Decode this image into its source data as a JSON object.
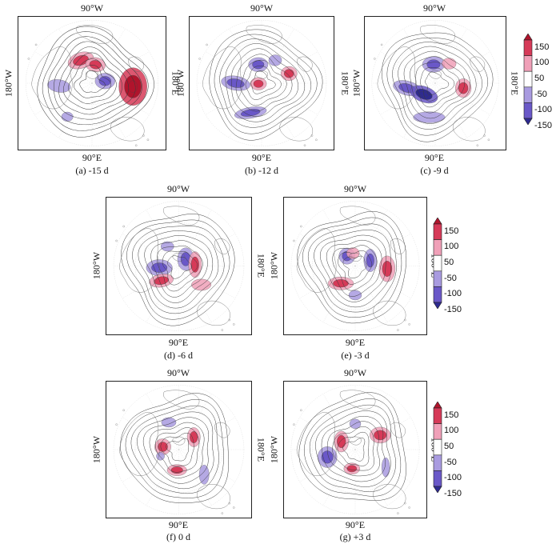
{
  "panel_labels": {
    "top": "90°W",
    "bottom": "90°E",
    "left": "180°W",
    "right": "180°E"
  },
  "panels": [
    {
      "id": "a",
      "caption": "(a) -15 d"
    },
    {
      "id": "b",
      "caption": "(b) -12 d"
    },
    {
      "id": "c",
      "caption": "(c) -9 d"
    },
    {
      "id": "d",
      "caption": "(d) -6 d"
    },
    {
      "id": "e",
      "caption": "(e) -3 d"
    },
    {
      "id": "f",
      "caption": "(f) 0 d"
    },
    {
      "id": "g",
      "caption": "(g) +3 d"
    }
  ],
  "colorbar": {
    "levels": [
      "150",
      "100",
      "50",
      "-50",
      "-100",
      "-150"
    ],
    "colors": [
      "#b0142c",
      "#d63a58",
      "#f0a0b8",
      "#ffffff",
      "#a99be0",
      "#6a58c8",
      "#2e2a90"
    ]
  },
  "anomalies": {
    "a": [
      {
        "sign": 1,
        "amp": 2,
        "ang": -115,
        "r": 0.4,
        "rx": 0.16,
        "ry": 0.1,
        "rot": -20
      },
      {
        "sign": 1,
        "amp": 2,
        "ang": -80,
        "r": 0.3,
        "rx": 0.12,
        "ry": 0.09,
        "rot": 10
      },
      {
        "sign": 1,
        "amp": 3,
        "ang": 5,
        "r": 0.62,
        "rx": 0.17,
        "ry": 0.24,
        "rot": 0
      },
      {
        "sign": -1,
        "amp": 1,
        "ang": 175,
        "r": 0.5,
        "rx": 0.14,
        "ry": 0.08,
        "rot": 10
      },
      {
        "sign": -1,
        "amp": 2,
        "ang": -10,
        "r": 0.2,
        "rx": 0.12,
        "ry": 0.1,
        "rot": 0
      },
      {
        "sign": -1,
        "amp": 1,
        "ang": 125,
        "r": 0.65,
        "rx": 0.07,
        "ry": 0.06,
        "rot": 0
      }
    ],
    "b": [
      {
        "sign": -1,
        "amp": 2,
        "ang": -100,
        "r": 0.3,
        "rx": 0.12,
        "ry": 0.09,
        "rot": 0
      },
      {
        "sign": -1,
        "amp": 2,
        "ang": 180,
        "r": 0.4,
        "rx": 0.18,
        "ry": 0.09,
        "rot": 10
      },
      {
        "sign": -1,
        "amp": 2,
        "ang": 110,
        "r": 0.5,
        "rx": 0.2,
        "ry": 0.07,
        "rot": -10
      },
      {
        "sign": 1,
        "amp": 2,
        "ang": 170,
        "r": 0.05,
        "rx": 0.1,
        "ry": 0.08,
        "rot": 0
      },
      {
        "sign": 1,
        "amp": 2,
        "ang": -20,
        "r": 0.45,
        "rx": 0.1,
        "ry": 0.09,
        "rot": 0
      },
      {
        "sign": -1,
        "amp": 1,
        "ang": -60,
        "r": 0.42,
        "rx": 0.08,
        "ry": 0.07,
        "rot": 0
      }
    ],
    "c": [
      {
        "sign": -1,
        "amp": 2,
        "ang": -95,
        "r": 0.3,
        "rx": 0.14,
        "ry": 0.1,
        "rot": 0
      },
      {
        "sign": -1,
        "amp": 2,
        "ang": 170,
        "r": 0.45,
        "rx": 0.18,
        "ry": 0.09,
        "rot": 15
      },
      {
        "sign": -1,
        "amp": 3,
        "ang": 135,
        "r": 0.25,
        "rx": 0.18,
        "ry": 0.1,
        "rot": 20
      },
      {
        "sign": 1,
        "amp": 2,
        "ang": 10,
        "r": 0.45,
        "rx": 0.1,
        "ry": 0.12,
        "rot": 0
      },
      {
        "sign": 1,
        "amp": 1,
        "ang": -55,
        "r": 0.38,
        "rx": 0.09,
        "ry": 0.07,
        "rot": 0
      },
      {
        "sign": -1,
        "amp": 1,
        "ang": 100,
        "r": 0.55,
        "rx": 0.2,
        "ry": 0.07,
        "rot": 0
      }
    ],
    "d": [
      {
        "sign": -1,
        "amp": 2,
        "ang": 175,
        "r": 0.3,
        "rx": 0.16,
        "ry": 0.1,
        "rot": 0
      },
      {
        "sign": -1,
        "amp": 2,
        "ang": -45,
        "r": 0.15,
        "rx": 0.1,
        "ry": 0.14,
        "rot": 0
      },
      {
        "sign": 1,
        "amp": 2,
        "ang": -5,
        "r": 0.25,
        "rx": 0.08,
        "ry": 0.16,
        "rot": 0
      },
      {
        "sign": 1,
        "amp": 2,
        "ang": 140,
        "r": 0.35,
        "rx": 0.15,
        "ry": 0.08,
        "rot": -10
      },
      {
        "sign": 1,
        "amp": 1,
        "ang": 40,
        "r": 0.45,
        "rx": 0.12,
        "ry": 0.07,
        "rot": 0
      },
      {
        "sign": -1,
        "amp": 1,
        "ang": -120,
        "r": 0.35,
        "rx": 0.08,
        "ry": 0.06,
        "rot": 0
      }
    ],
    "e": [
      {
        "sign": -1,
        "amp": 2,
        "ang": -130,
        "r": 0.2,
        "rx": 0.1,
        "ry": 0.1,
        "rot": 0
      },
      {
        "sign": -1,
        "amp": 2,
        "ang": -20,
        "r": 0.25,
        "rx": 0.08,
        "ry": 0.14,
        "rot": 0
      },
      {
        "sign": 1,
        "amp": 2,
        "ang": 5,
        "r": 0.5,
        "rx": 0.1,
        "ry": 0.16,
        "rot": 0
      },
      {
        "sign": 1,
        "amp": 2,
        "ang": 130,
        "r": 0.35,
        "rx": 0.16,
        "ry": 0.08,
        "rot": 0
      },
      {
        "sign": -1,
        "amp": 1,
        "ang": 90,
        "r": 0.45,
        "rx": 0.08,
        "ry": 0.06,
        "rot": 0
      },
      {
        "sign": 1,
        "amp": 1,
        "ang": -100,
        "r": 0.2,
        "rx": 0.08,
        "ry": 0.07,
        "rot": 0
      }
    ],
    "f": [
      {
        "sign": 1,
        "amp": 2,
        "ang": -170,
        "r": 0.25,
        "rx": 0.1,
        "ry": 0.1,
        "rot": 0
      },
      {
        "sign": 1,
        "amp": 2,
        "ang": -40,
        "r": 0.3,
        "rx": 0.08,
        "ry": 0.12,
        "rot": 0
      },
      {
        "sign": 1,
        "amp": 2,
        "ang": 95,
        "r": 0.32,
        "rx": 0.12,
        "ry": 0.07,
        "rot": 0
      },
      {
        "sign": -1,
        "amp": 1,
        "ang": -110,
        "r": 0.45,
        "rx": 0.09,
        "ry": 0.06,
        "rot": 0
      },
      {
        "sign": -1,
        "amp": 1,
        "ang": 45,
        "r": 0.55,
        "rx": 0.06,
        "ry": 0.12,
        "rot": 0
      },
      {
        "sign": -1,
        "amp": 1,
        "ang": 160,
        "r": 0.3,
        "rx": 0.05,
        "ry": 0.05,
        "rot": 0
      }
    ],
    "g": [
      {
        "sign": 1,
        "amp": 2,
        "ang": -150,
        "r": 0.25,
        "rx": 0.09,
        "ry": 0.13,
        "rot": 0
      },
      {
        "sign": 1,
        "amp": 2,
        "ang": -30,
        "r": 0.45,
        "rx": 0.13,
        "ry": 0.1,
        "rot": 0
      },
      {
        "sign": 1,
        "amp": 2,
        "ang": 100,
        "r": 0.3,
        "rx": 0.1,
        "ry": 0.07,
        "rot": 0
      },
      {
        "sign": -1,
        "amp": 2,
        "ang": 165,
        "r": 0.45,
        "rx": 0.12,
        "ry": 0.13,
        "rot": 0
      },
      {
        "sign": -1,
        "amp": 1,
        "ang": -90,
        "r": 0.4,
        "rx": 0.07,
        "ry": 0.06,
        "rot": 0
      },
      {
        "sign": -1,
        "amp": 1,
        "ang": 30,
        "r": 0.55,
        "rx": 0.05,
        "ry": 0.12,
        "rot": 0
      }
    ]
  }
}
